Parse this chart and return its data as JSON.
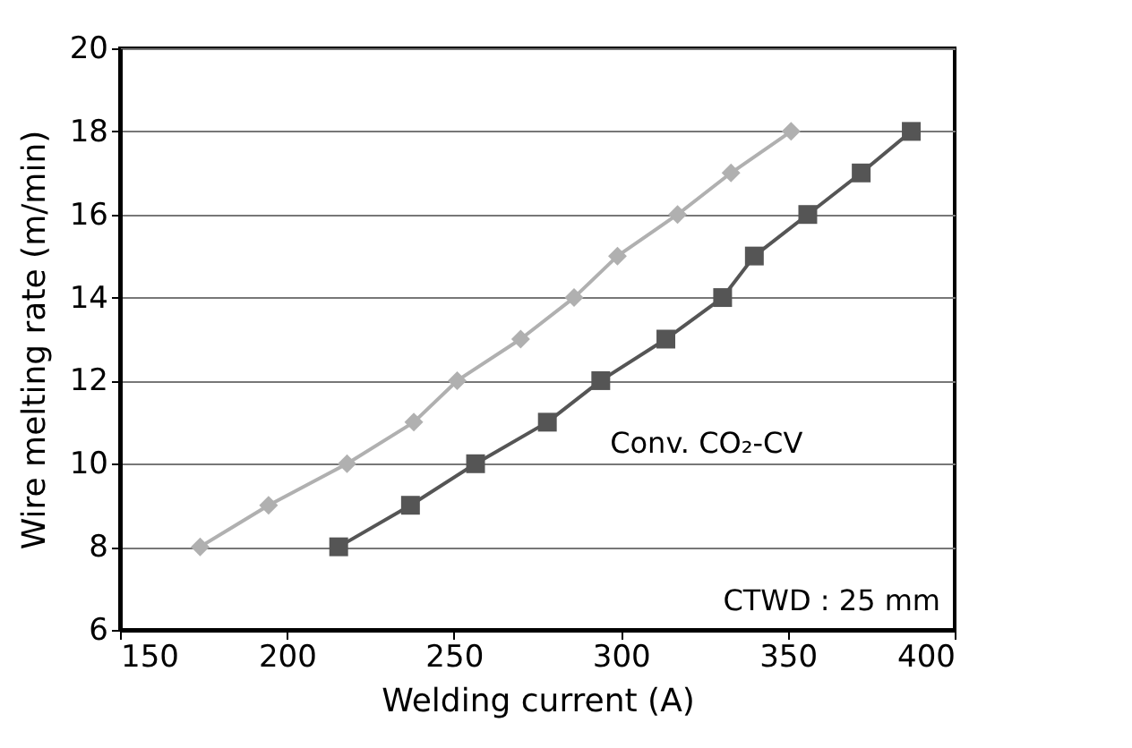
{
  "chart_data": {
    "type": "line",
    "xlabel": "Welding current (A)",
    "ylabel": "Wire melting rate (m/min)",
    "xlim": [
      150,
      400
    ],
    "xticks": [
      150,
      200,
      250,
      300,
      350,
      400
    ],
    "ylim": [
      6,
      20
    ],
    "yticks": [
      6,
      8,
      10,
      12,
      14,
      16,
      18,
      20
    ],
    "grid": "y",
    "line_style": "solid",
    "series": [
      {
        "color": "#b0b0b0",
        "marker": "diamond",
        "x": [
          174,
          194.5,
          218,
          238,
          251,
          270,
          286,
          299,
          317,
          333,
          351
        ],
        "values": [
          8,
          9,
          10,
          11,
          12,
          13,
          14,
          15,
          16,
          17,
          18
        ]
      },
      {
        "name": "Conv. CO₂-CV",
        "color": "#555555",
        "marker": "square",
        "x": [
          215.5,
          237,
          256.5,
          278,
          294,
          313.5,
          330.5,
          340,
          356,
          372,
          387
        ],
        "values": [
          8,
          9,
          10,
          11,
          12,
          13,
          14,
          15,
          16,
          17,
          18
        ]
      }
    ],
    "annotations": [
      "CTWD : 25 mm"
    ]
  }
}
